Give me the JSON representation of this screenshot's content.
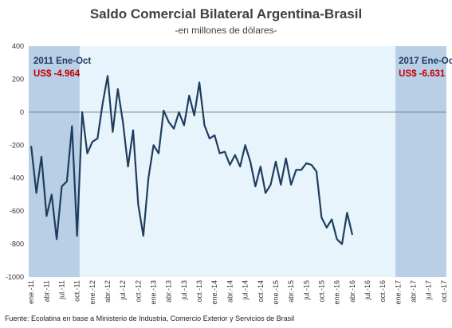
{
  "source": "Fuente: Ecolatina en base a Ministerio de Industria, Comercio Exterior y Servicios de Brasil",
  "colors": {
    "line": "#1f3d5f",
    "highlight": "#b8cfe6",
    "plot_bg": "#e8f4fb",
    "red": "#c00000",
    "navy": "#1f3864"
  },
  "chart_data": {
    "type": "line",
    "title": "Saldo Comercial Bilateral Argentina-Brasil",
    "subtitle": "-en millones de dólares-",
    "xlabel": "",
    "ylabel": "",
    "ylim": [
      -1000,
      400
    ],
    "yticks": [
      400,
      200,
      0,
      -200,
      -400,
      -600,
      -800,
      -1000
    ],
    "grid": false,
    "x_labels": [
      "ene.-11",
      "abr.-11",
      "jul.-11",
      "oct.-11",
      "ene.-12",
      "abr.-12",
      "jul.-12",
      "oct.-12",
      "ene.-13",
      "abr.-13",
      "jul.-13",
      "oct.-13",
      "ene.-14",
      "abr.-14",
      "jul.-14",
      "oct.-14",
      "ene.-15",
      "abr.-15",
      "jul.-15",
      "oct.-15",
      "ene.-16",
      "abr.-16",
      "jul.-16",
      "oct.-16",
      "ene.-17",
      "abr.-17",
      "jul.-17",
      "oct.-17"
    ],
    "series": [
      {
        "values": [
          -210,
          -490,
          -270,
          -630,
          -500,
          -770,
          -450,
          -420,
          -85,
          -750,
          0,
          -250,
          -180,
          -160,
          50,
          220,
          -120,
          140,
          -60,
          -330,
          -110,
          -560,
          -750,
          -400,
          -200,
          -250,
          10,
          -60,
          -100,
          0,
          -80,
          100,
          -20,
          180,
          -80,
          -160,
          -140,
          -250,
          -240,
          -320,
          -260,
          -330,
          -200,
          -300,
          -450,
          -330,
          -490,
          -440,
          -300,
          -440,
          -280,
          -440,
          -350,
          -350,
          -310,
          -320,
          -360,
          -640,
          -700,
          -650,
          -770,
          -800,
          -610,
          -740
        ]
      }
    ],
    "highlight_ranges": [
      {
        "from": 0,
        "to": 9,
        "period": "2011 Ene-Oct",
        "value": "US$ -4.964"
      },
      {
        "from": 72,
        "to": 81,
        "period": "2017 Ene-Oct",
        "value": "US$ -6.631"
      }
    ]
  }
}
